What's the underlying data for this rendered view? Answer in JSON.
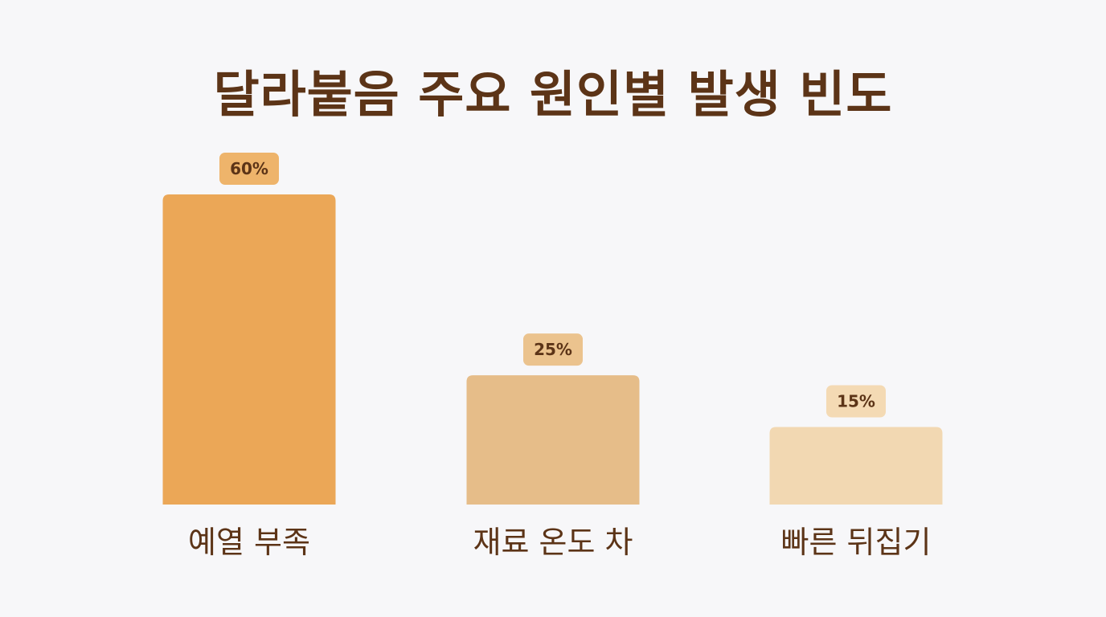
{
  "chart_data": {
    "type": "bar",
    "title": "달라붙음 주요 원인별 발생 빈도",
    "xlabel": "",
    "ylabel": "",
    "ylim": [
      0,
      60
    ],
    "grid": false,
    "categories": [
      "예열 부족",
      "재료 온도 차",
      "빠른 뒤집기"
    ],
    "values": [
      60,
      25,
      15
    ],
    "value_labels": [
      "60%",
      "25%",
      "15%"
    ],
    "bar_colors": [
      "#eba757",
      "#e6bd89",
      "#f2d8b2"
    ],
    "badge_colors": [
      "#eeb46b",
      "#ebc38e",
      "#f4dab4"
    ]
  }
}
